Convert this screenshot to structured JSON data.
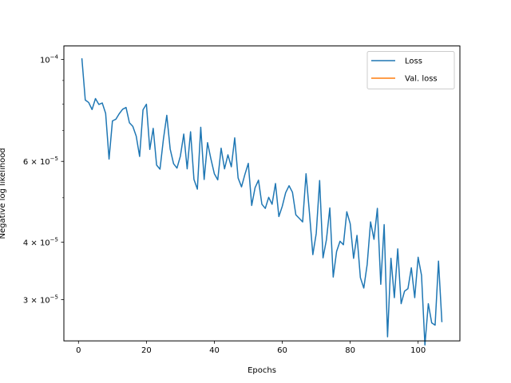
{
  "chart_data": {
    "type": "line",
    "title": "",
    "xlabel": "Epochs",
    "ylabel": "Negative log likelihood",
    "xlim": [
      -4.3,
      112.3
    ],
    "ylim": [
      2.44e-05,
      0.000107
    ],
    "yscale": "log",
    "grid": false,
    "legend_position": "top-right",
    "x_ticks": [
      {
        "value": 0,
        "label": "0"
      },
      {
        "value": 20,
        "label": "20"
      },
      {
        "value": 40,
        "label": "40"
      },
      {
        "value": 60,
        "label": "60"
      },
      {
        "value": 80,
        "label": "80"
      },
      {
        "value": 100,
        "label": "100"
      }
    ],
    "y_ticks": [
      {
        "value": 0.0001,
        "mant": "10",
        "exp": "−4"
      },
      {
        "value": 6e-05,
        "mant": "6 × 10",
        "exp": "−5"
      },
      {
        "value": 4e-05,
        "mant": "4 × 10",
        "exp": "−5"
      },
      {
        "value": 3e-05,
        "mant": "3 × 10",
        "exp": "−5"
      }
    ],
    "y_minor_ticks": [
      9e-05,
      8e-05,
      7e-05,
      5e-05
    ],
    "series": [
      {
        "name": "Loss",
        "color": "#1f77b4",
        "x": [
          1,
          2,
          3,
          4,
          5,
          6,
          7,
          8,
          9,
          10,
          11,
          12,
          13,
          14,
          15,
          16,
          17,
          18,
          19,
          20,
          21,
          22,
          23,
          24,
          25,
          26,
          27,
          28,
          29,
          30,
          31,
          32,
          33,
          34,
          35,
          36,
          37,
          38,
          39,
          40,
          41,
          42,
          43,
          44,
          45,
          46,
          47,
          48,
          49,
          50,
          51,
          52,
          53,
          54,
          55,
          56,
          57,
          58,
          59,
          60,
          61,
          62,
          63,
          64,
          65,
          66,
          67,
          68,
          69,
          70,
          71,
          72,
          73,
          74,
          75,
          76,
          77,
          78,
          79,
          80,
          81,
          82,
          83,
          84,
          85,
          86,
          87,
          88,
          89,
          90,
          91,
          92,
          93,
          94,
          95,
          96,
          97,
          98,
          99,
          100,
          101,
          102,
          103,
          104,
          105,
          106,
          107
        ],
        "y": [
          0.0001006,
          8.16e-05,
          8.06e-05,
          7.78e-05,
          8.22e-05,
          7.98e-05,
          8.04e-05,
          7.63e-05,
          6.07e-05,
          7.35e-05,
          7.41e-05,
          7.62e-05,
          7.79e-05,
          7.86e-05,
          7.28e-05,
          7.15e-05,
          6.81e-05,
          6.15e-05,
          7.77e-05,
          7.99e-05,
          6.37e-05,
          7.08e-05,
          5.89e-05,
          5.77e-05,
          6.7e-05,
          7.56e-05,
          6.38e-05,
          5.93e-05,
          5.8e-05,
          6.16e-05,
          6.88e-05,
          5.78e-05,
          6.96e-05,
          5.48e-05,
          5.22e-05,
          7.12e-05,
          5.48e-05,
          6.59e-05,
          6.07e-05,
          5.64e-05,
          5.47e-05,
          6.41e-05,
          5.78e-05,
          6.2e-05,
          5.84e-05,
          6.75e-05,
          5.52e-05,
          5.28e-05,
          5.62e-05,
          5.94e-05,
          4.81e-05,
          5.26e-05,
          5.46e-05,
          4.84e-05,
          4.74e-05,
          5.01e-05,
          4.84e-05,
          5.37e-05,
          4.55e-05,
          4.79e-05,
          5.13e-05,
          5.31e-05,
          5.14e-05,
          4.59e-05,
          4.51e-05,
          4.43e-05,
          5.64e-05,
          4.64e-05,
          3.76e-05,
          4.18e-05,
          5.45e-05,
          3.7e-05,
          4.05e-05,
          4.75e-05,
          3.36e-05,
          3.82e-05,
          4.02e-05,
          3.95e-05,
          4.66e-05,
          4.39e-05,
          3.69e-05,
          4.14e-05,
          3.35e-05,
          3.18e-05,
          3.58e-05,
          4.43e-05,
          4.06e-05,
          4.74e-05,
          3.24e-05,
          4.37e-05,
          2.49e-05,
          3.69e-05,
          3.03e-05,
          3.87e-05,
          2.94e-05,
          3.13e-05,
          3.17e-05,
          3.52e-05,
          3.03e-05,
          3.71e-05,
          3.39e-05,
          2.39e-05,
          2.94e-05,
          2.67e-05,
          2.64e-05,
          3.64e-05,
          2.68e-05
        ]
      },
      {
        "name": "Val. loss",
        "color": "#ff7f0e",
        "x": [],
        "y": []
      }
    ]
  }
}
